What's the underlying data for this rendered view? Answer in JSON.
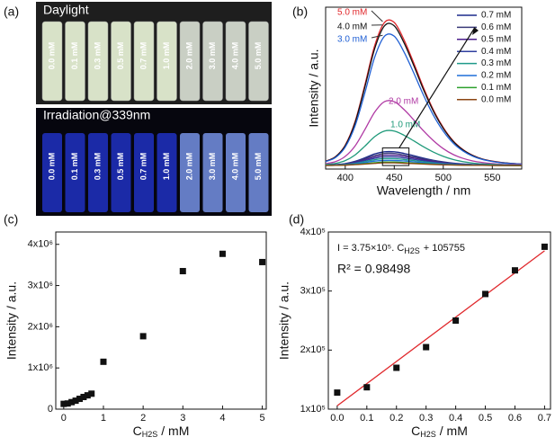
{
  "photo": {
    "panel_label": "(a)",
    "top_title": "Daylight",
    "bottom_title": "Irradiation@339nm",
    "labels": [
      "0.0 mM",
      "0.1 mM",
      "0.3 mM",
      "0.5 mM",
      "0.7 mM",
      "1.0 mM",
      "2.0 mM",
      "3.0 mM",
      "4.0 mM",
      "5.0 mM"
    ]
  },
  "chart_data": [
    {
      "type": "line",
      "panel_label": "(b)",
      "xlabel": "Wavelength / nm",
      "ylabel": "Intensity / a.u.",
      "x": [
        380,
        390,
        400,
        410,
        420,
        430,
        440,
        450,
        460,
        470,
        480,
        490,
        500,
        510,
        520,
        530,
        540,
        550,
        560,
        570,
        580
      ],
      "xlim": [
        380,
        580
      ],
      "xticks": [
        400,
        450,
        500,
        550
      ],
      "ylim": [
        0,
        92
      ],
      "series": [
        {
          "name": "5.0 mM",
          "color": "#e0282c",
          "values": [
            4.5,
            7.0,
            13.6,
            26.9,
            47.7,
            70.1,
            83.3,
            83.3,
            73.4,
            60.1,
            46.0,
            33.5,
            23.6,
            16.1,
            11.1,
            7.8,
            5.7,
            4.5,
            3.7,
            3.2,
            2.8
          ]
        },
        {
          "name": "4.0 mM",
          "color": "#111111",
          "values": [
            4.4,
            6.9,
            13.3,
            26.3,
            46.6,
            68.4,
            81.4,
            81.4,
            71.7,
            58.7,
            44.9,
            32.8,
            23.1,
            15.8,
            10.9,
            7.7,
            5.6,
            4.4,
            3.6,
            3.2,
            2.8
          ]
        },
        {
          "name": "3.0 mM",
          "color": "#2160d4",
          "values": [
            4.3,
            6.5,
            12.5,
            24.5,
            43.3,
            63.5,
            75.5,
            75.5,
            66.5,
            54.5,
            41.8,
            30.5,
            21.5,
            14.8,
            10.3,
            7.3,
            5.4,
            4.3,
            3.5,
            3.1,
            2.8
          ]
        },
        {
          "name": "2.0 mM",
          "color": "#b03aa4",
          "values": [
            3.1,
            4.2,
            7.2,
            13.1,
            22.4,
            32.3,
            38.3,
            38.3,
            33.8,
            27.9,
            21.6,
            16.1,
            11.6,
            8.3,
            6.1,
            4.6,
            3.7,
            3.1,
            2.7,
            2.6,
            2.4
          ]
        },
        {
          "name": "1.0 mM",
          "color": "#1f9a7a",
          "values": [
            2.6,
            3.2,
            4.8,
            8,
            13,
            18.4,
            21.6,
            21.6,
            19.2,
            16,
            12.6,
            9.6,
            7.2,
            5.4,
            4.2,
            3.4,
            2.9,
            2.6,
            2.4,
            2.3,
            2.2
          ]
        },
        {
          "name": "0.7 mM",
          "color": "#1c2a8c",
          "values": [
            2.2,
            2.5,
            3.1,
            4.4,
            6.4,
            8.6,
            9.8,
            9.8,
            8.9,
            7.6,
            6.2,
            5.0,
            4.1,
            3.4,
            2.9,
            2.6,
            2.4,
            2.2,
            2.2,
            2.1,
            2.1
          ]
        },
        {
          "name": "0.6 mM",
          "color": "#3a3a78",
          "values": [
            2.2,
            2.4,
            3.0,
            4.1,
            5.9,
            7.7,
            8.9,
            8.9,
            8.0,
            6.9,
            5.7,
            4.7,
            3.8,
            3.2,
            2.8,
            2.5,
            2.3,
            2.2,
            2.1,
            2.1,
            2.1
          ]
        },
        {
          "name": "0.5 mM",
          "color": "#4b1e8c",
          "values": [
            2.2,
            2.4,
            2.8,
            3.8,
            5.3,
            6.9,
            7.9,
            7.9,
            7.2,
            6.2,
            5.2,
            4.3,
            3.6,
            3.0,
            2.7,
            2.4,
            2.3,
            2.2,
            2.1,
            2.1,
            2.1
          ]
        },
        {
          "name": "0.4 mM",
          "color": "#2f3f9f",
          "values": [
            2.2,
            2.3,
            2.7,
            3.5,
            4.8,
            6.1,
            6.9,
            6.9,
            6.3,
            5.5,
            4.7,
            3.9,
            3.3,
            2.9,
            2.6,
            2.4,
            2.2,
            2.2,
            2.1,
            2.1,
            2.1
          ]
        },
        {
          "name": "0.3 mM",
          "color": "#1f9a8a",
          "values": [
            2.1,
            2.2,
            2.6,
            3.2,
            4.2,
            5.3,
            5.9,
            5.9,
            5.4,
            4.8,
            4.1,
            3.5,
            3.0,
            2.7,
            2.4,
            2.3,
            2.2,
            2.1,
            2.1,
            2.1,
            2.0
          ]
        },
        {
          "name": "0.2 mM",
          "color": "#1e6fd9",
          "values": [
            2.1,
            2.2,
            2.4,
            2.9,
            3.7,
            4.5,
            4.9,
            4.9,
            4.6,
            4.1,
            3.6,
            3.1,
            2.8,
            2.5,
            2.3,
            2.2,
            2.1,
            2.1,
            2.1,
            2.0,
            2.0
          ]
        },
        {
          "name": "0.1 mM",
          "color": "#2ca02c",
          "values": [
            2.1,
            2.1,
            2.3,
            2.6,
            3.1,
            3.6,
            4.0,
            4.0,
            3.7,
            3.4,
            3.1,
            2.8,
            2.5,
            2.3,
            2.2,
            2.1,
            2.1,
            2.1,
            2.0,
            2.0,
            2.0
          ]
        },
        {
          "name": "0.0 mM",
          "color": "#8b4513",
          "values": [
            2.0,
            2.1,
            2.2,
            2.5,
            2.8,
            3.2,
            3.5,
            3.5,
            3.3,
            3.1,
            2.8,
            2.6,
            2.4,
            2.3,
            2.2,
            2.1,
            2.1,
            2.0,
            2.0,
            2.0,
            2.0
          ]
        }
      ]
    },
    {
      "type": "scatter",
      "panel_label": "(c)",
      "ylabel": "Intensity / a.u.",
      "xlabel": {
        "main": "C",
        "sub": "H2S",
        "unit": "/ mM"
      },
      "color": "#111111",
      "x": [
        0,
        0.1,
        0.2,
        0.3,
        0.4,
        0.5,
        0.6,
        0.7,
        1,
        2,
        3,
        4,
        5
      ],
      "values": [
        128000,
        137000,
        170000,
        205000,
        250000,
        295000,
        335000,
        375000,
        1150000,
        1770000,
        3350000,
        3770000,
        3570000
      ],
      "xlim": [
        -0.2,
        5.1
      ],
      "xticks": [
        0,
        1,
        2,
        3,
        4,
        5
      ],
      "ylim": [
        0,
        4300000
      ],
      "yticks": [
        0,
        {
          "value": 1000000,
          "label": "1x10⁶"
        },
        {
          "value": 2000000,
          "label": "2x10⁶"
        },
        {
          "value": 3000000,
          "label": "3x10⁶"
        },
        {
          "value": 4000000,
          "label": "4x10⁶"
        }
      ]
    },
    {
      "type": "scatter",
      "panel_label": "(d)",
      "ylabel": "Intensity / a.u.",
      "xlabel": {
        "main": "C",
        "sub": "H2S",
        "unit": "/ mM"
      },
      "color": "#111111",
      "x": [
        0,
        0.1,
        0.2,
        0.3,
        0.4,
        0.5,
        0.6,
        0.7
      ],
      "values": [
        128000,
        137000,
        170000,
        205000,
        250000,
        295000,
        335000,
        375000
      ],
      "xlim": [
        -0.03,
        0.72
      ],
      "xticks": [
        {
          "value": 0,
          "label": "0.0"
        },
        0.1,
        0.2,
        0.3,
        0.4,
        0.5,
        0.6,
        0.7
      ],
      "ylim": [
        100000,
        400000
      ],
      "yticks": [
        {
          "value": 100000,
          "label": "1x10⁵"
        },
        {
          "value": 200000,
          "label": "2x10⁵"
        },
        {
          "value": 300000,
          "label": "3x10⁵"
        },
        {
          "value": 400000,
          "label": "4x10⁵"
        }
      ],
      "fit": {
        "slope": 375000,
        "intercept": 105755,
        "color": "#e0282c"
      },
      "fit_label": {
        "main": "I = 3.75×10⁵. C",
        "sub": "H2S",
        "rest": "+ 105755"
      },
      "r2_label": "R² = 0.98498"
    }
  ]
}
